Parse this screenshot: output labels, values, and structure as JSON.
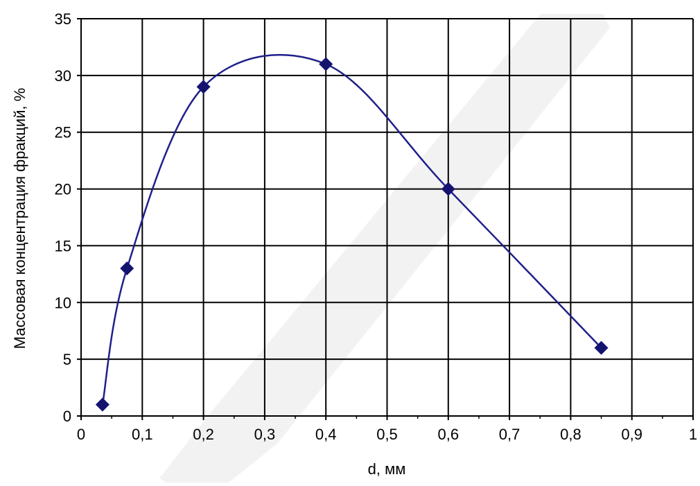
{
  "chart_data": {
    "type": "line",
    "title": "",
    "xlabel": "d, мм",
    "ylabel": "Массовая концентрация фракций, %",
    "xlim": [
      0,
      1
    ],
    "ylim": [
      0,
      35
    ],
    "x_ticks": [
      "0",
      "0,1",
      "0,2",
      "0,3",
      "0,4",
      "0,5",
      "0,6",
      "0,7",
      "0,8",
      "0,9",
      "1"
    ],
    "y_ticks": [
      "0",
      "5",
      "10",
      "15",
      "20",
      "25",
      "30",
      "35"
    ],
    "grid": true,
    "smooth": true,
    "marker": "diamond",
    "colors": {
      "line": "#1f1f8a",
      "marker": "#141470",
      "grid": "#000000",
      "watermark": "#e8e8e8"
    },
    "series": [
      {
        "x": [
          0.035,
          0.075,
          0.2,
          0.4,
          0.6,
          0.85
        ],
        "y": [
          1,
          13,
          29,
          31,
          20,
          6
        ]
      }
    ]
  }
}
